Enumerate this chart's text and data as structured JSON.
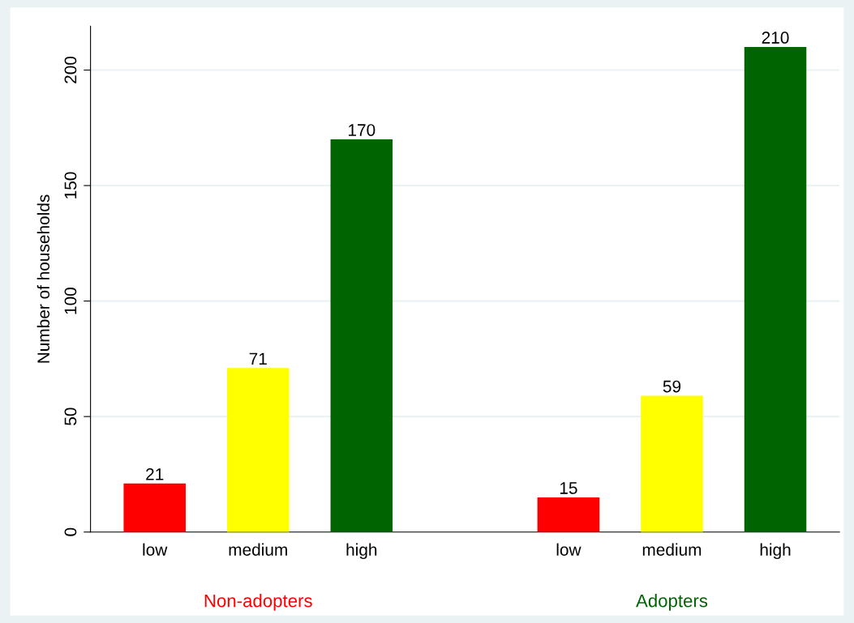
{
  "chart_data": {
    "type": "bar",
    "ylabel": "Number of households",
    "categories": [
      "low",
      "medium",
      "high",
      null,
      "low",
      "medium",
      "high"
    ],
    "values": [
      21,
      71,
      170,
      null,
      15,
      59,
      210
    ],
    "colors": [
      "#ff0000",
      "#ffff00",
      "#006400",
      null,
      "#ff0000",
      "#ffff00",
      "#006400"
    ],
    "ylim": [
      0,
      219
    ],
    "yticks": [
      0,
      50,
      100,
      150,
      200
    ],
    "grid": "y",
    "data_labels": true,
    "annotations": [
      "Non-adopters",
      "Adopters"
    ]
  }
}
